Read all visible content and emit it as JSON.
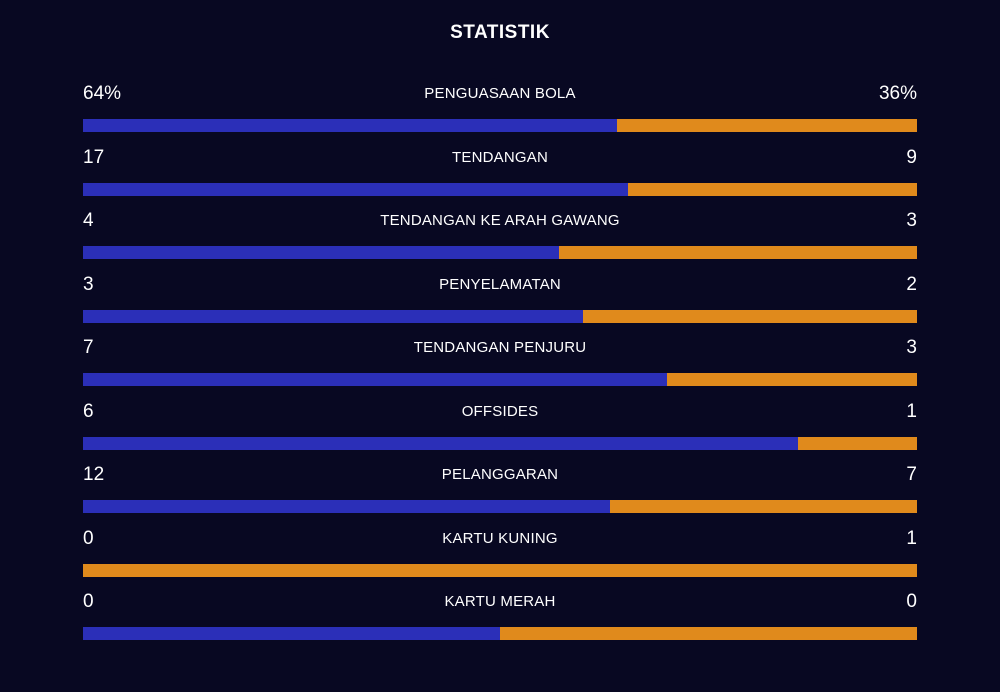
{
  "title": "STATISTIK",
  "colors": {
    "background": "#080822",
    "home": "#2b2fb8",
    "away": "#e08a1c"
  },
  "stats": [
    {
      "label": "PENGUASAAN BOLA",
      "home": "64%",
      "away": "36%",
      "home_share": 0.64
    },
    {
      "label": "TENDANGAN",
      "home": "17",
      "away": "9",
      "home_share": 0.654
    },
    {
      "label": "TENDANGAN KE ARAH GAWANG",
      "home": "4",
      "away": "3",
      "home_share": 0.571
    },
    {
      "label": "PENYELAMATAN",
      "home": "3",
      "away": "2",
      "home_share": 0.6
    },
    {
      "label": "TENDANGAN PENJURU",
      "home": "7",
      "away": "3",
      "home_share": 0.7
    },
    {
      "label": "OFFSIDES",
      "home": "6",
      "away": "1",
      "home_share": 0.857
    },
    {
      "label": "PELANGGARAN",
      "home": "12",
      "away": "7",
      "home_share": 0.632
    },
    {
      "label": "KARTU KUNING",
      "home": "0",
      "away": "1",
      "home_share": 0.0
    },
    {
      "label": "KARTU MERAH",
      "home": "0",
      "away": "0",
      "home_share": 0.5
    }
  ]
}
